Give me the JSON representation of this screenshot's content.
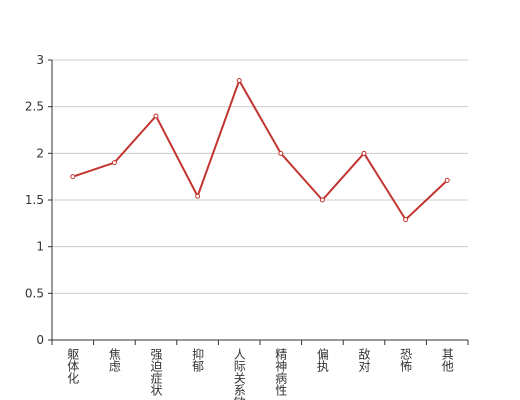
{
  "chart_data": {
    "type": "line",
    "categories": [
      "躯体化",
      "焦虑",
      "强迫症状",
      "抑郁",
      "人际关系敏感",
      "精神病性",
      "偏执",
      "敌对",
      "恐怖",
      "其他"
    ],
    "values": [
      1.75,
      1.9,
      2.4,
      1.54,
      2.78,
      2.0,
      1.5,
      2.0,
      1.29,
      1.71
    ],
    "color": "#c23531",
    "ylim": [
      0,
      3
    ],
    "yticks": [
      0,
      0.5,
      1,
      1.5,
      2,
      2.5,
      3
    ],
    "grid": true
  }
}
